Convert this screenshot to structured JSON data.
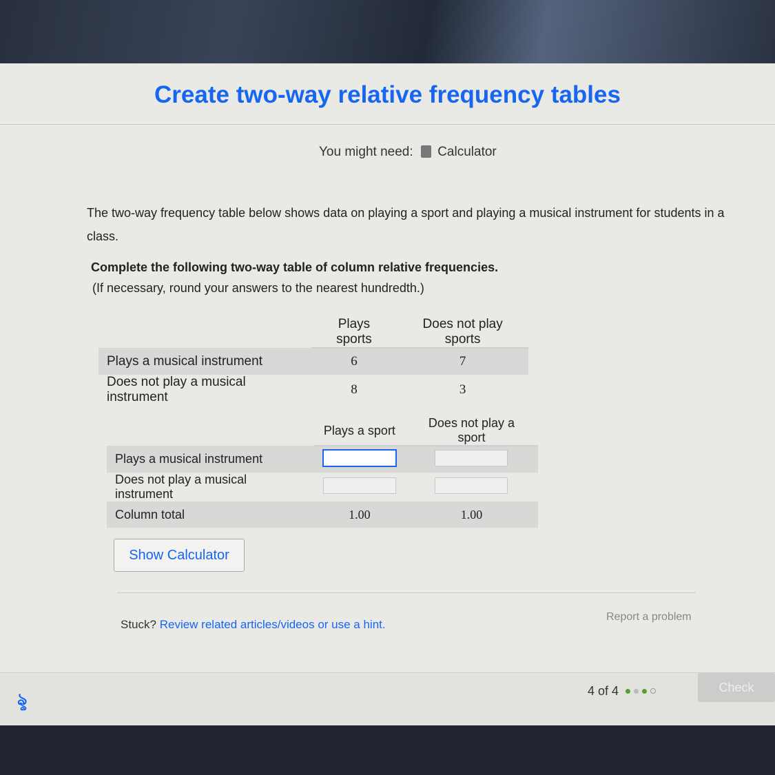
{
  "title": "Create two-way relative frequency tables",
  "might_need": {
    "label": "You might need:",
    "tool": "Calculator",
    "icon": "calculator-icon"
  },
  "intro": "The two-way frequency table below shows data on playing a sport and playing a musical instrument for students in a class.",
  "instruction": "Complete the following two-way table of column relative frequencies.",
  "rounding_note": "(If necessary, round your answers to the nearest hundredth.)",
  "freq_table": {
    "headers": [
      "Plays sports",
      "Does not play sports"
    ],
    "rows": [
      {
        "label": "Plays a musical instrument",
        "values": [
          "6",
          "7"
        ]
      },
      {
        "label": "Does not play a musical instrument",
        "values": [
          "8",
          "3"
        ]
      }
    ]
  },
  "rel_table": {
    "headers": [
      "Plays a sport",
      "Does not play a sport"
    ],
    "rows": [
      {
        "label": "Plays a musical instrument",
        "values": [
          "",
          ""
        ]
      },
      {
        "label": "Does not play a musical instrument",
        "values": [
          "",
          ""
        ]
      },
      {
        "label": "Column total",
        "values": [
          "1.00",
          "1.00"
        ]
      }
    ]
  },
  "show_calculator": "Show Calculator",
  "stuck": {
    "prefix": "Stuck?",
    "link": "Review related articles/videos or use a hint."
  },
  "report": "Report a problem",
  "footer": {
    "progress": "4 of 4",
    "check": "Check",
    "dots": [
      "#5a9e2f",
      "#bbbbbb",
      "#5a9e2f",
      "empty"
    ]
  },
  "colors": {
    "accent": "#1865f2"
  }
}
